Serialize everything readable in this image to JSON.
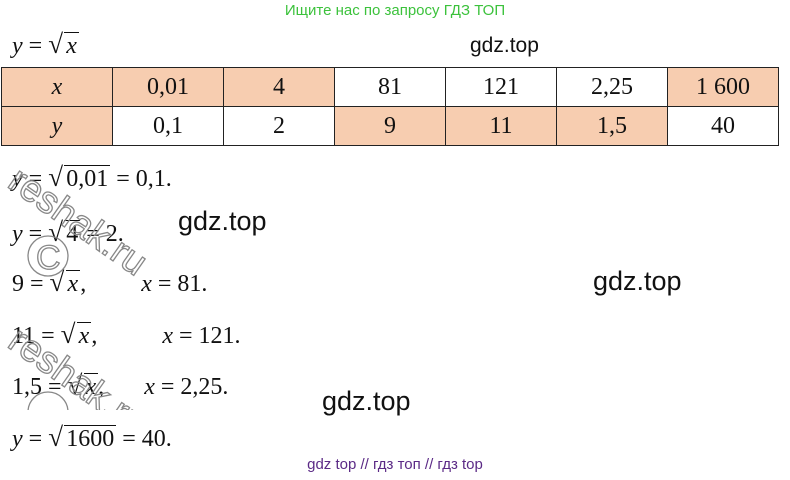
{
  "header": {
    "text": "Ищите нас по запросу ГДЗ ТОП",
    "color": "#3cc23c"
  },
  "function_label": {
    "lhs": "y",
    "eq": " = ",
    "radicand": "x"
  },
  "watermarks": [
    "gdz.top",
    "gdz.top",
    "gdz.top",
    "gdz.top"
  ],
  "side_watermark": {
    "text": "reshak.ru",
    "mark": "©"
  },
  "table": {
    "rows": [
      {
        "label": "x",
        "cells": [
          "0,01",
          "4",
          "81",
          "121",
          "2,25",
          "1 600"
        ]
      },
      {
        "label": "y",
        "cells": [
          "0,1",
          "2",
          "9",
          "11",
          "1,5",
          "40"
        ]
      }
    ],
    "shade_color": "#f7cdb0"
  },
  "solutions": [
    {
      "lhs": "y = ",
      "radicand": "0,01",
      "rhs": " = 0,1."
    },
    {
      "lhs": "y = ",
      "radicand": "4",
      "rhs": " = 2."
    },
    {
      "lhs": "9 = ",
      "radicand": "x",
      "rhs": ",",
      "gap": "x = 81."
    },
    {
      "lhs": "11 = ",
      "radicand": "x",
      "rhs": ",",
      "gap": "x = 121."
    },
    {
      "lhs": "1,5 = ",
      "radicand": "x",
      "rhs": ",",
      "gap": "x = 2,25."
    },
    {
      "lhs": "y = ",
      "radicand": "1600",
      "rhs": " = 40."
    }
  ],
  "footer": {
    "text": "gdz top  //  гдз топ  //  гдз top",
    "color": "#5b2a86"
  }
}
